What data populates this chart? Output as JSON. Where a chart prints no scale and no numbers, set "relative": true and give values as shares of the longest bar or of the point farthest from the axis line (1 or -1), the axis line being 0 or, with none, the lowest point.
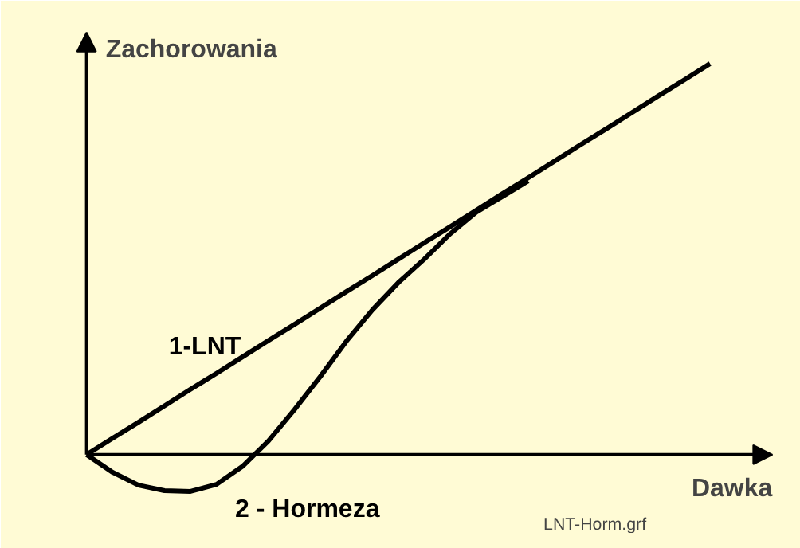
{
  "chart_data": {
    "type": "line",
    "relative": true,
    "xlabel": "Dawka",
    "ylabel": "Zachorowania",
    "grid": false,
    "annotations": [
      "LNT-Horm.grf"
    ],
    "categories": [
      null,
      null,
      null,
      null,
      null,
      null,
      null,
      null,
      null,
      null,
      null,
      null,
      null,
      null,
      null,
      null,
      null,
      null,
      null,
      null,
      null,
      null,
      null,
      null,
      null
    ],
    "series": [
      {
        "name": "1-LNT",
        "color": "#000000",
        "values": [
          0,
          0.042,
          0.083,
          0.125,
          0.167,
          0.208,
          0.25,
          0.292,
          0.333,
          0.375,
          0.417,
          0.458,
          0.5,
          0.542,
          0.583,
          0.625,
          0.667,
          0.708,
          0.75,
          0.792,
          0.833,
          0.875,
          0.917,
          0.958,
          1
        ]
      },
      {
        "name": "2 - Hormeza",
        "color": "#000000",
        "values": [
          0,
          -0.045,
          -0.078,
          -0.092,
          -0.094,
          -0.076,
          -0.03,
          0.035,
          0.115,
          0.2,
          0.29,
          0.37,
          0.44,
          0.5,
          0.565,
          0.62,
          0.66,
          0.7,
          null,
          null,
          null,
          null,
          null,
          null,
          null
        ]
      }
    ]
  }
}
